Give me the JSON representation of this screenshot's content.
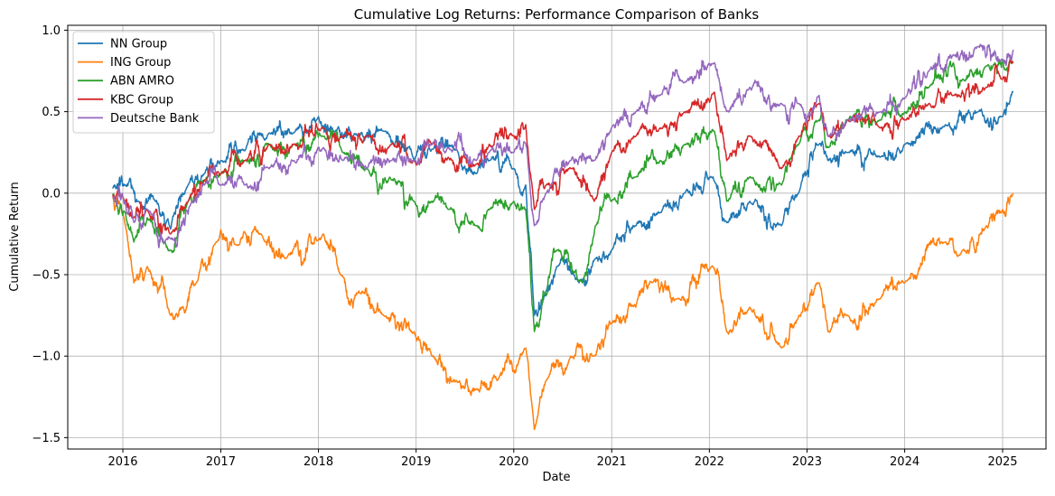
{
  "chart_data": {
    "type": "line",
    "title": "Cumulative Log Returns: Performance Comparison of Banks",
    "xlabel": "Date",
    "ylabel": "Cumulative Return",
    "xlim": [
      "2015-06-09",
      "2025-06-12"
    ],
    "ylim": [
      -1.57,
      1.03
    ],
    "grid": true,
    "legend_position": "upper-left",
    "x_ticks": [
      "2016",
      "2017",
      "2018",
      "2019",
      "2020",
      "2021",
      "2022",
      "2023",
      "2024",
      "2025"
    ],
    "y_ticks": [
      1.0,
      0.5,
      0.0,
      -0.5,
      -1.0,
      -1.5
    ],
    "y_tick_labels": [
      "1.0",
      "0.5",
      "0.0",
      "−0.5",
      "−1.0",
      "−1.5"
    ],
    "series": [
      {
        "name": "NN Group",
        "color": "#1f77b4",
        "points": [
          [
            "2015-11-23",
            0.03
          ],
          [
            "2016-01-10",
            0.05
          ],
          [
            "2016-03-01",
            -0.05
          ],
          [
            "2016-05-01",
            -0.05
          ],
          [
            "2016-06-27",
            -0.22
          ],
          [
            "2016-09-01",
            0.05
          ],
          [
            "2016-11-01",
            0.12
          ],
          [
            "2017-01-01",
            0.2
          ],
          [
            "2017-04-01",
            0.26
          ],
          [
            "2017-07-01",
            0.37
          ],
          [
            "2017-10-01",
            0.37
          ],
          [
            "2018-01-01",
            0.47
          ],
          [
            "2018-03-01",
            0.38
          ],
          [
            "2018-06-01",
            0.35
          ],
          [
            "2018-09-01",
            0.38
          ],
          [
            "2018-12-25",
            0.2
          ],
          [
            "2019-03-01",
            0.27
          ],
          [
            "2019-06-01",
            0.27
          ],
          [
            "2019-08-15",
            0.12
          ],
          [
            "2019-10-01",
            0.2
          ],
          [
            "2020-01-01",
            0.15
          ],
          [
            "2020-02-15",
            0.05
          ],
          [
            "2020-03-18",
            -0.75
          ],
          [
            "2020-05-01",
            -0.6
          ],
          [
            "2020-06-10",
            -0.45
          ],
          [
            "2020-09-01",
            -0.55
          ],
          [
            "2020-11-01",
            -0.4
          ],
          [
            "2021-01-01",
            -0.35
          ],
          [
            "2021-04-01",
            -0.2
          ],
          [
            "2021-07-01",
            -0.12
          ],
          [
            "2021-10-01",
            0.0
          ],
          [
            "2022-01-15",
            0.1
          ],
          [
            "2022-03-07",
            -0.18
          ],
          [
            "2022-06-01",
            -0.05
          ],
          [
            "2022-09-28",
            -0.2
          ],
          [
            "2022-12-01",
            0.0
          ],
          [
            "2023-02-15",
            0.3
          ],
          [
            "2023-03-20",
            0.2
          ],
          [
            "2023-06-01",
            0.25
          ],
          [
            "2023-10-01",
            0.22
          ],
          [
            "2024-01-01",
            0.3
          ],
          [
            "2024-06-01",
            0.42
          ],
          [
            "2024-10-01",
            0.5
          ],
          [
            "2025-01-01",
            0.47
          ],
          [
            "2025-02-10",
            0.62
          ]
        ]
      },
      {
        "name": "ING Group",
        "color": "#ff7f0e",
        "points": [
          [
            "2015-11-23",
            -0.02
          ],
          [
            "2016-01-05",
            -0.15
          ],
          [
            "2016-02-11",
            -0.55
          ],
          [
            "2016-04-01",
            -0.45
          ],
          [
            "2016-06-27",
            -0.75
          ],
          [
            "2016-08-10",
            -0.7
          ],
          [
            "2016-10-01",
            -0.55
          ],
          [
            "2016-12-15",
            -0.3
          ],
          [
            "2017-03-01",
            -0.32
          ],
          [
            "2017-06-01",
            -0.25
          ],
          [
            "2017-09-01",
            -0.4
          ],
          [
            "2018-01-20",
            -0.25
          ],
          [
            "2018-03-25",
            -0.5
          ],
          [
            "2018-06-01",
            -0.6
          ],
          [
            "2018-09-01",
            -0.75
          ],
          [
            "2018-12-25",
            -0.85
          ],
          [
            "2019-03-01",
            -1.0
          ],
          [
            "2019-06-01",
            -1.15
          ],
          [
            "2019-08-15",
            -1.2
          ],
          [
            "2019-11-01",
            -1.15
          ],
          [
            "2020-02-15",
            -0.95
          ],
          [
            "2020-03-18",
            -1.45
          ],
          [
            "2020-05-01",
            -1.15
          ],
          [
            "2020-08-01",
            -1.0
          ],
          [
            "2020-10-28",
            -1.0
          ],
          [
            "2021-01-01",
            -0.8
          ],
          [
            "2021-04-01",
            -0.7
          ],
          [
            "2021-06-01",
            -0.55
          ],
          [
            "2021-09-01",
            -0.65
          ],
          [
            "2022-01-15",
            -0.45
          ],
          [
            "2022-03-07",
            -0.85
          ],
          [
            "2022-06-01",
            -0.7
          ],
          [
            "2022-09-28",
            -0.95
          ],
          [
            "2022-12-01",
            -0.75
          ],
          [
            "2023-02-15",
            -0.55
          ],
          [
            "2023-03-20",
            -0.85
          ],
          [
            "2023-06-01",
            -0.75
          ],
          [
            "2023-10-01",
            -0.65
          ],
          [
            "2024-01-01",
            -0.55
          ],
          [
            "2024-06-01",
            -0.3
          ],
          [
            "2024-08-05",
            -0.35
          ],
          [
            "2024-11-01",
            -0.2
          ],
          [
            "2025-01-01",
            -0.1
          ],
          [
            "2025-02-10",
            0.0
          ]
        ]
      },
      {
        "name": "ABN AMRO",
        "color": "#2ca02c",
        "points": [
          [
            "2015-11-23",
            -0.01
          ],
          [
            "2016-01-10",
            -0.12
          ],
          [
            "2016-02-11",
            -0.3
          ],
          [
            "2016-04-01",
            -0.15
          ],
          [
            "2016-06-27",
            -0.35
          ],
          [
            "2016-09-01",
            -0.05
          ],
          [
            "2016-11-01",
            0.08
          ],
          [
            "2017-01-01",
            0.12
          ],
          [
            "2017-04-01",
            0.2
          ],
          [
            "2017-07-01",
            0.3
          ],
          [
            "2017-10-01",
            0.3
          ],
          [
            "2018-01-20",
            0.35
          ],
          [
            "2018-04-01",
            0.25
          ],
          [
            "2018-07-01",
            0.15
          ],
          [
            "2018-10-01",
            0.08
          ],
          [
            "2018-12-25",
            -0.05
          ],
          [
            "2019-03-01",
            -0.05
          ],
          [
            "2019-05-01",
            -0.1
          ],
          [
            "2019-08-15",
            -0.2
          ],
          [
            "2019-10-01",
            -0.1
          ],
          [
            "2020-01-01",
            -0.05
          ],
          [
            "2020-02-15",
            -0.1
          ],
          [
            "2020-03-18",
            -0.85
          ],
          [
            "2020-04-20",
            -0.6
          ],
          [
            "2020-06-10",
            -0.35
          ],
          [
            "2020-09-15",
            -0.55
          ],
          [
            "2020-11-01",
            -0.2
          ],
          [
            "2021-01-01",
            -0.05
          ],
          [
            "2021-04-01",
            0.1
          ],
          [
            "2021-07-01",
            0.2
          ],
          [
            "2021-10-01",
            0.3
          ],
          [
            "2022-01-20",
            0.38
          ],
          [
            "2022-03-07",
            -0.05
          ],
          [
            "2022-06-01",
            0.1
          ],
          [
            "2022-09-28",
            0.05
          ],
          [
            "2022-12-01",
            0.3
          ],
          [
            "2023-02-15",
            0.45
          ],
          [
            "2023-03-20",
            0.28
          ],
          [
            "2023-06-01",
            0.45
          ],
          [
            "2023-10-01",
            0.45
          ],
          [
            "2024-01-01",
            0.5
          ],
          [
            "2024-04-01",
            0.65
          ],
          [
            "2024-07-01",
            0.8
          ],
          [
            "2024-08-05",
            0.7
          ],
          [
            "2024-11-01",
            0.78
          ],
          [
            "2025-02-10",
            0.8
          ]
        ]
      },
      {
        "name": "KBC Group",
        "color": "#d62728",
        "points": [
          [
            "2015-11-23",
            -0.01
          ],
          [
            "2016-01-10",
            -0.05
          ],
          [
            "2016-02-11",
            -0.15
          ],
          [
            "2016-04-01",
            -0.1
          ],
          [
            "2016-06-27",
            -0.25
          ],
          [
            "2016-09-01",
            -0.05
          ],
          [
            "2016-11-01",
            0.08
          ],
          [
            "2017-01-01",
            0.12
          ],
          [
            "2017-04-01",
            0.2
          ],
          [
            "2017-07-01",
            0.3
          ],
          [
            "2017-10-01",
            0.3
          ],
          [
            "2018-01-20",
            0.4
          ],
          [
            "2018-04-01",
            0.35
          ],
          [
            "2018-07-01",
            0.35
          ],
          [
            "2018-10-01",
            0.3
          ],
          [
            "2018-12-25",
            0.2
          ],
          [
            "2019-03-01",
            0.3
          ],
          [
            "2019-05-01",
            0.22
          ],
          [
            "2019-08-15",
            0.18
          ],
          [
            "2019-10-01",
            0.3
          ],
          [
            "2020-01-01",
            0.35
          ],
          [
            "2020-02-15",
            0.42
          ],
          [
            "2020-03-18",
            -0.1
          ],
          [
            "2020-05-01",
            0.05
          ],
          [
            "2020-08-01",
            0.15
          ],
          [
            "2020-10-28",
            -0.05
          ],
          [
            "2021-01-01",
            0.25
          ],
          [
            "2021-04-01",
            0.35
          ],
          [
            "2021-07-01",
            0.4
          ],
          [
            "2021-10-01",
            0.5
          ],
          [
            "2022-01-20",
            0.62
          ],
          [
            "2022-03-07",
            0.2
          ],
          [
            "2022-06-01",
            0.35
          ],
          [
            "2022-09-28",
            0.15
          ],
          [
            "2022-12-01",
            0.35
          ],
          [
            "2023-02-15",
            0.55
          ],
          [
            "2023-03-20",
            0.35
          ],
          [
            "2023-06-01",
            0.45
          ],
          [
            "2023-10-01",
            0.4
          ],
          [
            "2024-01-01",
            0.45
          ],
          [
            "2024-04-01",
            0.55
          ],
          [
            "2024-07-01",
            0.6
          ],
          [
            "2024-11-01",
            0.65
          ],
          [
            "2025-01-01",
            0.7
          ],
          [
            "2025-02-10",
            0.8
          ]
        ]
      },
      {
        "name": "Deutsche Bank",
        "color": "#9467bd",
        "points": [
          [
            "2015-11-23",
            -0.02
          ],
          [
            "2016-01-10",
            -0.05
          ],
          [
            "2016-02-11",
            -0.18
          ],
          [
            "2016-04-01",
            -0.1
          ],
          [
            "2016-06-27",
            -0.28
          ],
          [
            "2016-09-15",
            -0.05
          ],
          [
            "2016-11-01",
            0.05
          ],
          [
            "2017-01-01",
            0.05
          ],
          [
            "2017-04-01",
            0.05
          ],
          [
            "2017-07-01",
            0.15
          ],
          [
            "2017-10-01",
            0.2
          ],
          [
            "2018-01-20",
            0.28
          ],
          [
            "2018-04-01",
            0.2
          ],
          [
            "2018-07-01",
            0.15
          ],
          [
            "2018-10-01",
            0.2
          ],
          [
            "2018-12-25",
            0.2
          ],
          [
            "2019-03-01",
            0.3
          ],
          [
            "2019-05-01",
            0.28
          ],
          [
            "2019-08-15",
            0.2
          ],
          [
            "2019-10-01",
            0.25
          ],
          [
            "2020-01-01",
            0.25
          ],
          [
            "2020-02-15",
            0.3
          ],
          [
            "2020-03-18",
            -0.2
          ],
          [
            "2020-05-01",
            0.0
          ],
          [
            "2020-08-01",
            0.2
          ],
          [
            "2020-10-28",
            0.2
          ],
          [
            "2021-01-01",
            0.4
          ],
          [
            "2021-04-01",
            0.5
          ],
          [
            "2021-07-01",
            0.6
          ],
          [
            "2021-10-01",
            0.68
          ],
          [
            "2022-01-20",
            0.8
          ],
          [
            "2022-03-07",
            0.5
          ],
          [
            "2022-06-01",
            0.65
          ],
          [
            "2022-09-28",
            0.55
          ],
          [
            "2022-12-01",
            0.55
          ],
          [
            "2023-02-15",
            0.6
          ],
          [
            "2023-03-20",
            0.35
          ],
          [
            "2023-06-01",
            0.45
          ],
          [
            "2023-10-01",
            0.5
          ],
          [
            "2024-01-01",
            0.58
          ],
          [
            "2024-04-01",
            0.75
          ],
          [
            "2024-07-01",
            0.85
          ],
          [
            "2024-10-01",
            0.9
          ],
          [
            "2025-01-01",
            0.82
          ],
          [
            "2025-02-10",
            0.88
          ]
        ]
      }
    ]
  }
}
